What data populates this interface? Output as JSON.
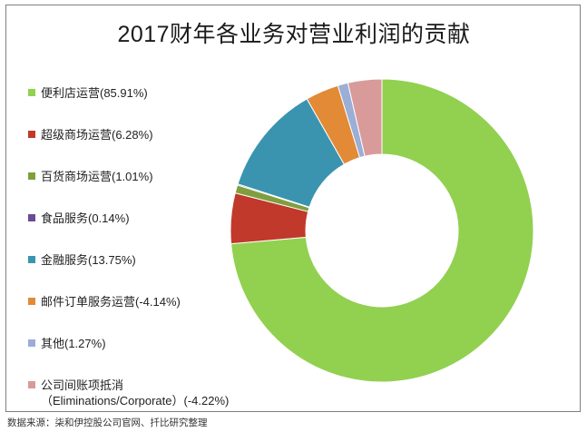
{
  "chart_data": {
    "type": "pie",
    "variant": "donut",
    "title": "2017财年各业务对营业利润的贡献",
    "legend_position": "left",
    "categories": [
      "便利店运营(85.91%)",
      "超级商场运营(6.28%)",
      "百货商场运营(1.01%)",
      "食品服务(0.14%)",
      "金融服务(13.75%)",
      "邮件订单服务运营(-4.14%)",
      "其他(1.27%)",
      "公司间账项抵消\n（Eliminations/Corporate）(-4.22%)"
    ],
    "values": [
      85.91,
      6.28,
      1.01,
      0.14,
      13.75,
      -4.14,
      1.27,
      -4.22
    ],
    "colors": [
      "#92d050",
      "#c0392b",
      "#7f9f3f",
      "#6a4c93",
      "#3a94b0",
      "#e28a36",
      "#9aaed6",
      "#d99a9a"
    ]
  },
  "source": "数据来源：柒和伊控股公司官网、扦比研究整理"
}
